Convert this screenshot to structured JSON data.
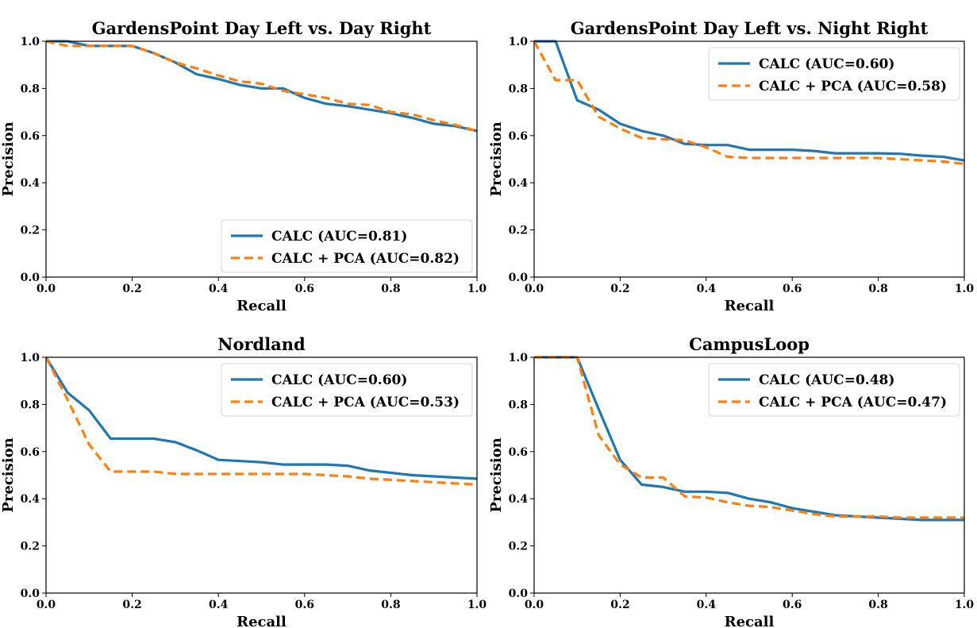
{
  "chart_data": [
    {
      "type": "line",
      "title": "GardensPoint Day Left vs. Day Right",
      "xlabel": "Recall",
      "ylabel": "Precision",
      "xlim": [
        0,
        1
      ],
      "ylim": [
        0,
        1
      ],
      "xticks": [
        "0.0",
        "0.2",
        "0.4",
        "0.6",
        "0.8",
        "1.0"
      ],
      "yticks": [
        "0.0",
        "0.2",
        "0.4",
        "0.6",
        "0.8",
        "1.0"
      ],
      "legend_position": "bottom-right",
      "grid": false,
      "series": [
        {
          "name": "CALC (AUC=0.81)",
          "color": "#1f77b4",
          "style": "solid",
          "x": [
            0.0,
            0.05,
            0.1,
            0.15,
            0.2,
            0.25,
            0.3,
            0.35,
            0.4,
            0.45,
            0.5,
            0.55,
            0.6,
            0.65,
            0.7,
            0.75,
            0.8,
            0.85,
            0.9,
            0.95,
            1.0
          ],
          "y": [
            1.0,
            1.0,
            0.98,
            0.98,
            0.98,
            0.95,
            0.91,
            0.86,
            0.84,
            0.815,
            0.8,
            0.8,
            0.76,
            0.735,
            0.725,
            0.71,
            0.695,
            0.675,
            0.65,
            0.64,
            0.62
          ]
        },
        {
          "name": "CALC + PCA (AUC=0.82)",
          "color": "#ff7f0e",
          "style": "dashed",
          "x": [
            0.0,
            0.05,
            0.1,
            0.15,
            0.2,
            0.25,
            0.3,
            0.35,
            0.4,
            0.45,
            0.5,
            0.55,
            0.6,
            0.65,
            0.7,
            0.75,
            0.8,
            0.85,
            0.9,
            0.95,
            1.0
          ],
          "y": [
            1.0,
            0.98,
            0.98,
            0.98,
            0.98,
            0.95,
            0.91,
            0.885,
            0.855,
            0.83,
            0.82,
            0.79,
            0.775,
            0.76,
            0.735,
            0.73,
            0.7,
            0.69,
            0.665,
            0.645,
            0.62
          ]
        }
      ]
    },
    {
      "type": "line",
      "title": "GardensPoint Day Left vs. Night Right",
      "xlabel": "Recall",
      "ylabel": "Precision",
      "xlim": [
        0,
        1
      ],
      "ylim": [
        0,
        1
      ],
      "xticks": [
        "0.0",
        "0.2",
        "0.4",
        "0.6",
        "0.8",
        "1.0"
      ],
      "yticks": [
        "0.0",
        "0.2",
        "0.4",
        "0.6",
        "0.8",
        "1.0"
      ],
      "legend_position": "top-right",
      "grid": false,
      "series": [
        {
          "name": "CALC (AUC=0.60)",
          "color": "#1f77b4",
          "style": "solid",
          "x": [
            0.0,
            0.05,
            0.1,
            0.15,
            0.2,
            0.25,
            0.3,
            0.35,
            0.4,
            0.45,
            0.5,
            0.55,
            0.6,
            0.65,
            0.7,
            0.75,
            0.8,
            0.85,
            0.9,
            0.95,
            1.0
          ],
          "y": [
            1.0,
            1.0,
            0.75,
            0.71,
            0.65,
            0.62,
            0.6,
            0.565,
            0.56,
            0.56,
            0.54,
            0.54,
            0.54,
            0.535,
            0.525,
            0.525,
            0.525,
            0.523,
            0.515,
            0.51,
            0.495
          ]
        },
        {
          "name": "CALC + PCA (AUC=0.58)",
          "color": "#ff7f0e",
          "style": "dashed",
          "x": [
            0.0,
            0.05,
            0.1,
            0.15,
            0.2,
            0.25,
            0.3,
            0.35,
            0.4,
            0.45,
            0.5,
            0.55,
            0.6,
            0.65,
            0.7,
            0.75,
            0.8,
            0.85,
            0.9,
            0.95,
            1.0
          ],
          "y": [
            1.0,
            0.835,
            0.835,
            0.68,
            0.63,
            0.59,
            0.585,
            0.58,
            0.55,
            0.51,
            0.505,
            0.505,
            0.505,
            0.505,
            0.505,
            0.505,
            0.505,
            0.5,
            0.495,
            0.49,
            0.48
          ]
        }
      ]
    },
    {
      "type": "line",
      "title": "Nordland",
      "xlabel": "Recall",
      "ylabel": "Precision",
      "xlim": [
        0,
        1
      ],
      "ylim": [
        0,
        1
      ],
      "xticks": [
        "0.0",
        "0.2",
        "0.4",
        "0.6",
        "0.8",
        "1.0"
      ],
      "yticks": [
        "0.0",
        "0.2",
        "0.4",
        "0.6",
        "0.8",
        "1.0"
      ],
      "legend_position": "top-right",
      "grid": false,
      "series": [
        {
          "name": "CALC (AUC=0.60)",
          "color": "#1f77b4",
          "style": "solid",
          "x": [
            0.0,
            0.05,
            0.1,
            0.15,
            0.2,
            0.25,
            0.3,
            0.35,
            0.4,
            0.45,
            0.5,
            0.55,
            0.6,
            0.65,
            0.7,
            0.75,
            0.8,
            0.85,
            0.9,
            0.95,
            1.0
          ],
          "y": [
            1.0,
            0.85,
            0.775,
            0.655,
            0.655,
            0.655,
            0.64,
            0.605,
            0.565,
            0.56,
            0.555,
            0.545,
            0.545,
            0.545,
            0.54,
            0.52,
            0.51,
            0.5,
            0.495,
            0.49,
            0.485
          ]
        },
        {
          "name": "CALC + PCA (AUC=0.53)",
          "color": "#ff7f0e",
          "style": "dashed",
          "x": [
            0.0,
            0.05,
            0.1,
            0.15,
            0.2,
            0.25,
            0.3,
            0.35,
            0.4,
            0.45,
            0.5,
            0.55,
            0.6,
            0.65,
            0.7,
            0.75,
            0.8,
            0.85,
            0.9,
            0.95,
            1.0
          ],
          "y": [
            1.0,
            0.82,
            0.63,
            0.515,
            0.515,
            0.515,
            0.505,
            0.505,
            0.505,
            0.505,
            0.505,
            0.505,
            0.505,
            0.5,
            0.495,
            0.485,
            0.48,
            0.475,
            0.47,
            0.465,
            0.46
          ]
        }
      ]
    },
    {
      "type": "line",
      "title": "CampusLoop",
      "xlabel": "Recall",
      "ylabel": "Precision",
      "xlim": [
        0,
        1
      ],
      "ylim": [
        0,
        1
      ],
      "xticks": [
        "0.0",
        "0.2",
        "0.4",
        "0.6",
        "0.8",
        "1.0"
      ],
      "yticks": [
        "0.0",
        "0.2",
        "0.4",
        "0.6",
        "0.8",
        "1.0"
      ],
      "legend_position": "top-right",
      "grid": false,
      "series": [
        {
          "name": "CALC (AUC=0.48)",
          "color": "#1f77b4",
          "style": "solid",
          "x": [
            0.0,
            0.05,
            0.1,
            0.15,
            0.2,
            0.25,
            0.3,
            0.35,
            0.4,
            0.45,
            0.5,
            0.55,
            0.6,
            0.65,
            0.7,
            0.75,
            0.8,
            0.85,
            0.9,
            0.95,
            1.0
          ],
          "y": [
            1.0,
            1.0,
            1.0,
            0.78,
            0.565,
            0.46,
            0.45,
            0.43,
            0.43,
            0.425,
            0.4,
            0.385,
            0.36,
            0.345,
            0.33,
            0.325,
            0.32,
            0.315,
            0.31,
            0.31,
            0.31
          ]
        },
        {
          "name": "CALC + PCA (AUC=0.47)",
          "color": "#ff7f0e",
          "style": "dashed",
          "x": [
            0.0,
            0.05,
            0.1,
            0.15,
            0.2,
            0.25,
            0.3,
            0.35,
            0.4,
            0.45,
            0.5,
            0.55,
            0.6,
            0.65,
            0.7,
            0.75,
            0.8,
            0.85,
            0.9,
            0.95,
            1.0
          ],
          "y": [
            1.0,
            1.0,
            1.0,
            0.67,
            0.545,
            0.49,
            0.49,
            0.41,
            0.405,
            0.385,
            0.37,
            0.365,
            0.35,
            0.335,
            0.325,
            0.325,
            0.325,
            0.32,
            0.32,
            0.32,
            0.32
          ]
        }
      ]
    }
  ]
}
